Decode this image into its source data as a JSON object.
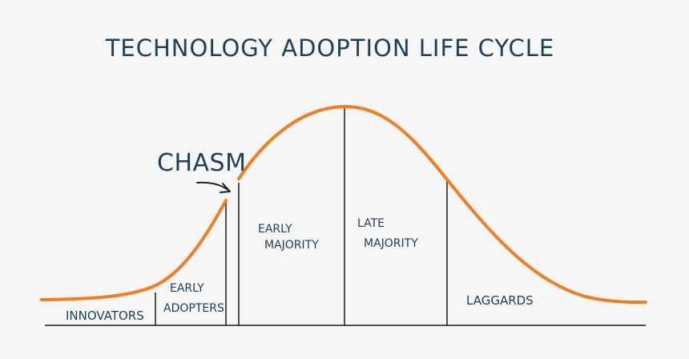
{
  "title": "TECHNOLOGY ADOPTION LIFE CYCLE",
  "chasm_label": "CHASM",
  "segments": {
    "innovators": "INNOVATORS",
    "early_adopters_line1": "EARLY",
    "early_adopters_line2": "ADOPTERS",
    "early_majority_line1": "EARLY",
    "early_majority_line2": "MAJORITY",
    "late_majority_line1": "LATE",
    "late_majority_line2": "MAJORITY",
    "laggards": "LAGGARDS"
  },
  "colors": {
    "curve": "#f57c1f",
    "ink": "#1f3f57",
    "line": "#1a1a1a",
    "background": "#f6f6f6"
  }
}
